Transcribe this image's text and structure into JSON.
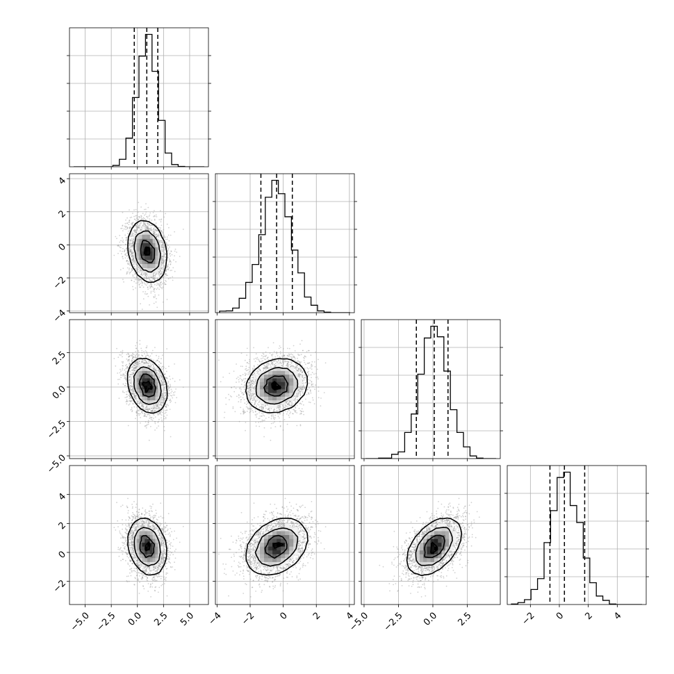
{
  "chart_data": {
    "type": "corner",
    "grid": true,
    "line_color": "#000000",
    "scatter_color": "#9a9a9a",
    "params": [
      {
        "range": [
          -6.5,
          6.8
        ],
        "ticks": [
          -5.0,
          -2.5,
          0.0,
          2.5,
          5.0
        ],
        "tick_labels": [
          "−5.0",
          "−2.5",
          "0.0",
          "2.5",
          "5.0"
        ],
        "mean": 0.95,
        "sd": 0.95,
        "quantiles": [
          -0.3,
          0.9,
          1.95
        ]
      },
      {
        "range": [
          -4.1,
          4.3
        ],
        "ticks": [
          -4,
          -2,
          0,
          2,
          4
        ],
        "tick_labels": [
          "−4",
          "−2",
          "0",
          "2",
          "4"
        ],
        "mean": -0.4,
        "sd": 0.95,
        "quantiles": [
          -1.35,
          -0.4,
          0.55
        ]
      },
      {
        "range": [
          -5.2,
          4.9
        ],
        "ticks": [
          -5.0,
          -2.5,
          0.0,
          2.5
        ],
        "tick_labels": [
          "−5.0",
          "−2.5",
          "0.0",
          "2.5"
        ],
        "mean": 0.1,
        "sd": 1.0,
        "quantiles": [
          -1.2,
          0.1,
          1.1
        ]
      },
      {
        "range": [
          -3.6,
          6.0
        ],
        "ticks": [
          -2,
          0,
          2,
          4
        ],
        "tick_labels": [
          "−2",
          "0",
          "2",
          "4"
        ],
        "mean": 0.4,
        "sd": 1.0,
        "quantiles": [
          -0.65,
          0.35,
          1.75
        ]
      }
    ],
    "correlations": [
      [
        1,
        -0.2,
        -0.25,
        -0.2
      ],
      [
        -0.2,
        1,
        0.15,
        0.3
      ],
      [
        -0.25,
        0.15,
        1,
        0.45
      ],
      [
        -0.2,
        0.3,
        0.45,
        1
      ]
    ]
  }
}
